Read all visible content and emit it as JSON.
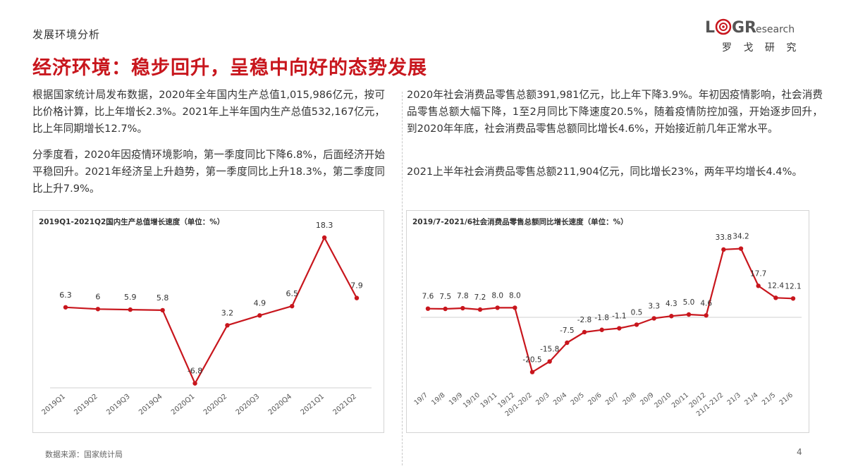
{
  "header": {
    "section": "发展环境分析",
    "title": "经济环境：稳步回升，呈稳中向好的态势发展",
    "logo_text": "LOGResearch",
    "logo_sub": "罗 戈 研 究",
    "logo_color": "#c8161d"
  },
  "left": {
    "para1": "根据国家统计局发布数据，2020年全年国内生产总值1,015,986亿元，按可比价格计算，比上年增长2.3%。2021年上半年国内生产总值532,167亿元，比上年同期增长12.7%。",
    "para2": "分季度看，2020年因疫情环境影响，第一季度同比下降6.8%，后面经济开始平稳回升。2021年经济呈上升趋势，第一季度同比上升18.3%，第二季度同比上升7.9%。"
  },
  "right": {
    "para1": "2020年社会消费品零售总额391,981亿元，比上年下降3.9%。年初因疫情影响，社会消费品零售总额大幅下降，1至2月同比下降速度20.5%，随着疫情防控加强，开始逐步回升，到2020年年底，社会消费品零售总额同比增长4.6%，开始接近前几年正常水平。",
    "para2": "2021上半年社会消费品零售总额211,904亿元，同比增长23%，两年平均增长4.4%。"
  },
  "footer": {
    "source": "数据来源：国家统计局",
    "page": "4"
  },
  "chart_data": [
    {
      "type": "line",
      "title": "2019Q1-2021Q2国内生产总值增长速度（单位：%）",
      "categories": [
        "2019Q1",
        "2019Q2",
        "2019Q3",
        "2019Q4",
        "2020Q1",
        "2020Q2",
        "2020Q3",
        "2020Q4",
        "2021Q1",
        "2021Q2"
      ],
      "values": [
        6.3,
        6,
        5.9,
        5.8,
        -6.8,
        3.2,
        4.9,
        6.5,
        18.3,
        7.9
      ],
      "labels": [
        "6.3",
        "6",
        "5.9",
        "5.8",
        "-6.8",
        "3.2",
        "4.9",
        "6.5",
        "18.3",
        "7.9"
      ],
      "color": "#c8161d",
      "ylim": [
        -10,
        20
      ]
    },
    {
      "type": "line",
      "title": "2019/7-2021/6社会消费品零售总额同比增长速度（单位：%）",
      "categories": [
        "19/7",
        "19/8",
        "19/9",
        "19/10",
        "19/11",
        "19/12",
        "20/1-20/2",
        "20/3",
        "20/4",
        "20/5",
        "20/6",
        "20/7",
        "20/8",
        "20/9",
        "20/10",
        "20/11",
        "20/12",
        "21/1-21/2",
        "21/3",
        "21/4",
        "21/5",
        "21/6"
      ],
      "values": [
        7.6,
        7.5,
        7.8,
        7.2,
        8.0,
        8.0,
        -20.5,
        -15.8,
        -7.5,
        -2.8,
        -1.8,
        -1.1,
        0.5,
        3.3,
        4.3,
        5.0,
        4.6,
        33.8,
        34.2,
        17.7,
        12.4,
        12.1
      ],
      "labels": [
        "7.6",
        "7.5",
        "7.8",
        "7.2",
        "8.0",
        "8.0",
        "-20.5",
        "-15.8",
        "-7.5",
        "-2.8",
        "-1.8",
        "-1.1",
        "0.5",
        "3.3",
        "4.3",
        "5.0",
        "4.6",
        "33.8",
        "34.2",
        "17.7",
        "12.4",
        "12.1"
      ],
      "color": "#c8161d",
      "ylim": [
        -25,
        40
      ]
    }
  ]
}
